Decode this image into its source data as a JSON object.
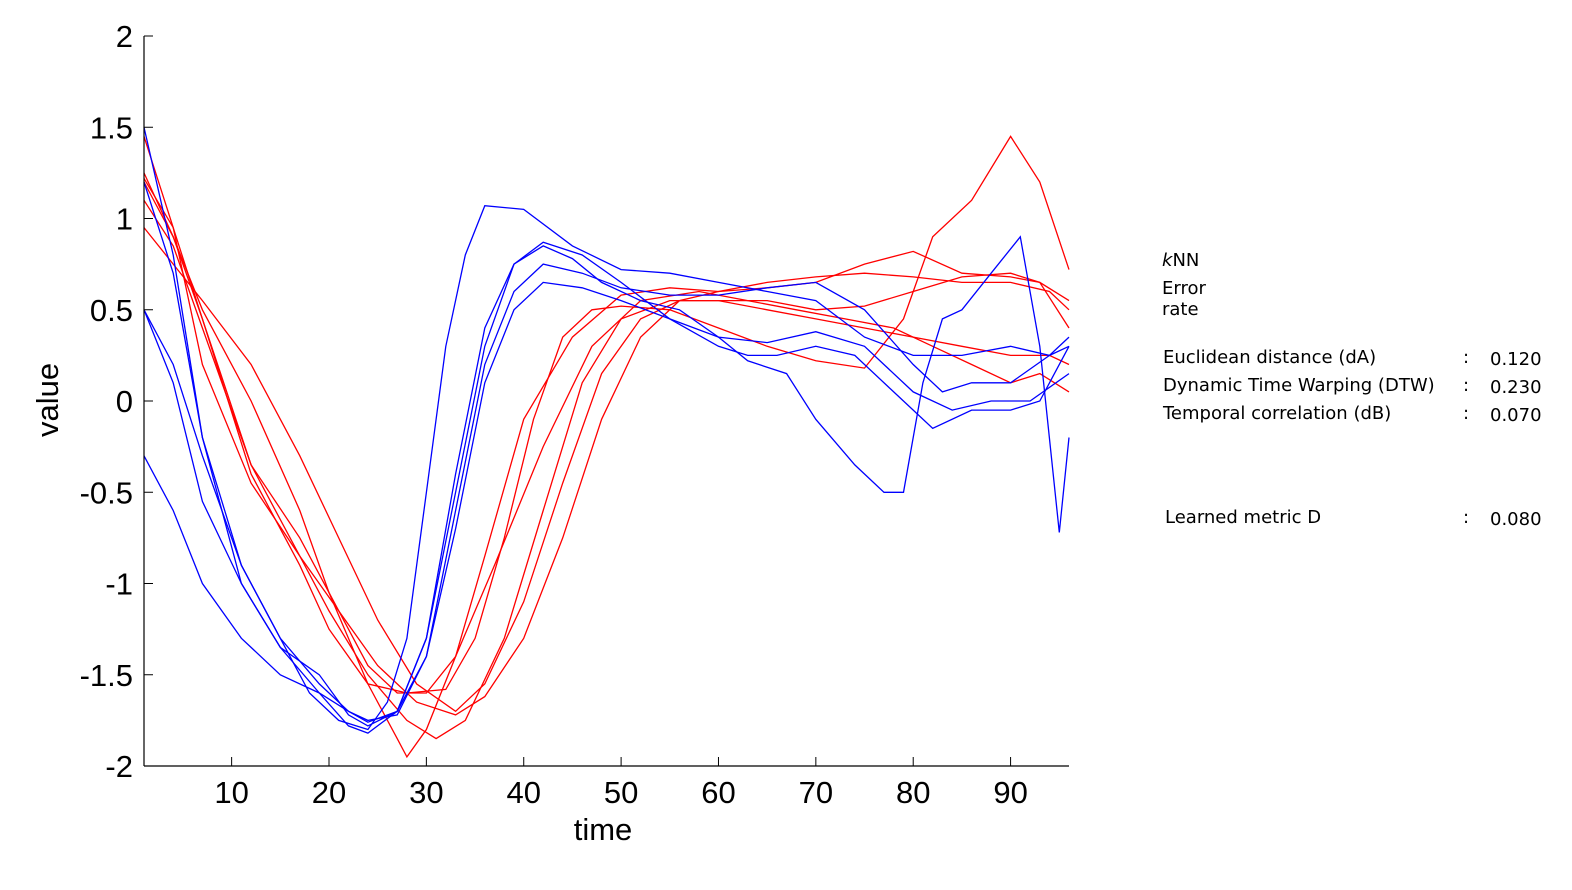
{
  "chart_data": {
    "type": "line",
    "title": "",
    "xlabel": "time",
    "ylabel": "value",
    "xlim": [
      1,
      96
    ],
    "ylim": [
      -2,
      2
    ],
    "xticks": [
      10,
      20,
      30,
      40,
      50,
      60,
      70,
      80,
      90
    ],
    "yticks": [
      2,
      1.5,
      1,
      0.5,
      0,
      -0.5,
      -1,
      -1.5,
      -2
    ],
    "ytick_labels": [
      "2",
      "1.5",
      "1",
      "0.5",
      "0",
      "-0.5",
      "-1",
      "-1.5",
      "-2"
    ],
    "colors": {
      "class_a": "#ff0000",
      "class_b": "#0000ff"
    },
    "series": [
      {
        "class": "red",
        "x": [
          1,
          4,
          7,
          12,
          17,
          20,
          24,
          27,
          28,
          30,
          33,
          36,
          40,
          45,
          50,
          55,
          60,
          65,
          70,
          75,
          80,
          85,
          90,
          93,
          96
        ],
        "y": [
          1.2,
          0.9,
          0.5,
          0.0,
          -0.6,
          -1.05,
          -1.55,
          -1.85,
          -1.95,
          -1.8,
          -1.4,
          -0.85,
          -0.1,
          0.35,
          0.58,
          0.62,
          0.6,
          0.62,
          0.65,
          0.75,
          0.82,
          0.7,
          0.68,
          0.65,
          0.4
        ]
      },
      {
        "class": "red",
        "x": [
          1,
          4,
          7,
          12,
          17,
          20,
          24,
          28,
          31,
          34,
          38,
          42,
          46,
          50,
          55,
          60,
          65,
          70,
          75,
          80,
          85,
          90,
          93,
          96
        ],
        "y": [
          1.1,
          0.85,
          0.4,
          -0.35,
          -0.85,
          -1.15,
          -1.5,
          -1.75,
          -1.85,
          -1.75,
          -1.3,
          -0.6,
          0.1,
          0.45,
          0.55,
          0.55,
          0.55,
          0.5,
          0.52,
          0.6,
          0.68,
          0.7,
          0.65,
          0.55
        ]
      },
      {
        "class": "red",
        "x": [
          1,
          4,
          7,
          12,
          17,
          21,
          25,
          29,
          33,
          36,
          40,
          44,
          48,
          52,
          56,
          60,
          65,
          70,
          75,
          80,
          85,
          90,
          94,
          96
        ],
        "y": [
          1.45,
          0.95,
          0.2,
          -0.45,
          -0.85,
          -1.15,
          -1.45,
          -1.65,
          -1.72,
          -1.62,
          -1.3,
          -0.75,
          -0.1,
          0.35,
          0.55,
          0.6,
          0.65,
          0.68,
          0.7,
          0.68,
          0.65,
          0.65,
          0.6,
          0.5
        ]
      },
      {
        "class": "red",
        "x": [
          1,
          4,
          7,
          12,
          17,
          21,
          25,
          29,
          33,
          36,
          40,
          44,
          48,
          52,
          56,
          60,
          65,
          70,
          75,
          80,
          85,
          90,
          94,
          96
        ],
        "y": [
          0.95,
          0.75,
          0.55,
          0.2,
          -0.3,
          -0.75,
          -1.2,
          -1.55,
          -1.7,
          -1.55,
          -1.1,
          -0.45,
          0.15,
          0.45,
          0.55,
          0.55,
          0.5,
          0.45,
          0.4,
          0.35,
          0.3,
          0.25,
          0.25,
          0.2
        ]
      },
      {
        "class": "red",
        "x": [
          1,
          4,
          7,
          12,
          17,
          20,
          24,
          28,
          32,
          35,
          38,
          41,
          44,
          47,
          50,
          55,
          60,
          65,
          70,
          75,
          79,
          82,
          86,
          90,
          93,
          96
        ],
        "y": [
          1.25,
          0.9,
          0.45,
          -0.4,
          -0.9,
          -1.25,
          -1.55,
          -1.6,
          -1.58,
          -1.3,
          -0.75,
          -0.1,
          0.35,
          0.5,
          0.52,
          0.5,
          0.4,
          0.3,
          0.22,
          0.18,
          0.45,
          0.9,
          1.1,
          1.45,
          1.2,
          0.72
        ]
      },
      {
        "class": "red",
        "x": [
          1,
          4,
          7,
          12,
          17,
          20,
          24,
          27,
          30,
          33,
          37,
          42,
          47,
          52,
          58,
          63,
          68,
          73,
          78,
          82,
          86,
          90,
          93,
          96
        ],
        "y": [
          1.22,
          0.95,
          0.45,
          -0.35,
          -0.75,
          -1.05,
          -1.45,
          -1.6,
          -1.6,
          -1.4,
          -0.9,
          -0.25,
          0.3,
          0.55,
          0.6,
          0.55,
          0.5,
          0.45,
          0.4,
          0.3,
          0.2,
          0.1,
          0.15,
          0.05
        ]
      },
      {
        "class": "blue",
        "x": [
          1,
          4,
          7,
          11,
          15,
          18,
          21,
          24,
          26,
          28,
          30,
          32,
          34,
          36,
          40,
          45,
          50,
          55,
          60,
          65,
          70,
          75,
          80,
          85,
          90,
          94,
          96
        ],
        "y": [
          0.5,
          0.2,
          -0.3,
          -0.9,
          -1.3,
          -1.6,
          -1.75,
          -1.8,
          -1.65,
          -1.3,
          -0.5,
          0.3,
          0.8,
          1.07,
          1.05,
          0.85,
          0.72,
          0.7,
          0.65,
          0.6,
          0.55,
          0.35,
          0.25,
          0.25,
          0.3,
          0.25,
          0.3
        ]
      },
      {
        "class": "blue",
        "x": [
          1,
          4,
          7,
          11,
          15,
          19,
          22,
          24,
          27,
          30,
          33,
          36,
          39,
          42,
          45,
          48,
          52,
          56,
          60,
          63,
          67,
          70,
          74,
          77,
          79,
          81,
          83,
          85,
          88,
          91,
          93,
          95,
          96
        ],
        "y": [
          1.5,
          0.8,
          -0.2,
          -1.0,
          -1.35,
          -1.5,
          -1.72,
          -1.78,
          -1.7,
          -1.3,
          -0.4,
          0.4,
          0.75,
          0.85,
          0.78,
          0.65,
          0.55,
          0.5,
          0.35,
          0.22,
          0.15,
          -0.1,
          -0.35,
          -0.5,
          -0.5,
          0.1,
          0.45,
          0.5,
          0.7,
          0.9,
          0.3,
          -0.72,
          -0.2
        ]
      },
      {
        "class": "blue",
        "x": [
          1,
          4,
          7,
          11,
          15,
          19,
          22,
          24,
          27,
          30,
          33,
          36,
          39,
          42,
          46,
          50,
          55,
          60,
          65,
          70,
          75,
          80,
          83,
          86,
          90,
          94,
          96
        ],
        "y": [
          1.2,
          0.7,
          -0.2,
          -0.9,
          -1.3,
          -1.55,
          -1.7,
          -1.75,
          -1.72,
          -1.4,
          -0.6,
          0.2,
          0.6,
          0.75,
          0.7,
          0.62,
          0.58,
          0.58,
          0.62,
          0.65,
          0.5,
          0.2,
          0.05,
          0.1,
          0.1,
          0.25,
          0.35
        ]
      },
      {
        "class": "blue",
        "x": [
          1,
          4,
          7,
          11,
          15,
          19,
          22,
          24,
          27,
          30,
          33,
          36,
          39,
          42,
          46,
          50,
          55,
          60,
          65,
          70,
          75,
          80,
          84,
          88,
          92,
          96
        ],
        "y": [
          -0.3,
          -0.6,
          -1.0,
          -1.3,
          -1.5,
          -1.6,
          -1.7,
          -1.76,
          -1.7,
          -1.4,
          -0.7,
          0.1,
          0.5,
          0.65,
          0.62,
          0.55,
          0.45,
          0.35,
          0.32,
          0.38,
          0.3,
          0.05,
          -0.05,
          0.0,
          0.0,
          0.15
        ]
      },
      {
        "class": "blue",
        "x": [
          1,
          4,
          7,
          11,
          15,
          19,
          22,
          24,
          27,
          30,
          33,
          36,
          39,
          42,
          46,
          50,
          55,
          60,
          63,
          66,
          70,
          74,
          78,
          82,
          86,
          90,
          93,
          96
        ],
        "y": [
          0.5,
          0.1,
          -0.55,
          -1.0,
          -1.35,
          -1.6,
          -1.78,
          -1.82,
          -1.7,
          -1.3,
          -0.5,
          0.3,
          0.75,
          0.87,
          0.8,
          0.65,
          0.45,
          0.3,
          0.25,
          0.25,
          0.3,
          0.25,
          0.05,
          -0.15,
          -0.05,
          -0.05,
          0.0,
          0.3
        ]
      }
    ]
  },
  "panel": {
    "knn_k": "k",
    "knn_rest": "NN",
    "error_rate": "Error rate",
    "metrics": [
      {
        "name": "Euclidean distance (dA)",
        "colon": ":",
        "value": "0.120"
      },
      {
        "name": "Dynamic Time Warping (DTW)",
        "colon": ":",
        "value": "0.230"
      },
      {
        "name": "Temporal correlation (dB)",
        "colon": ":",
        "value": "0.070"
      }
    ],
    "learned": {
      "name": "Learned metric D",
      "colon": ":",
      "value": "0.080"
    }
  }
}
